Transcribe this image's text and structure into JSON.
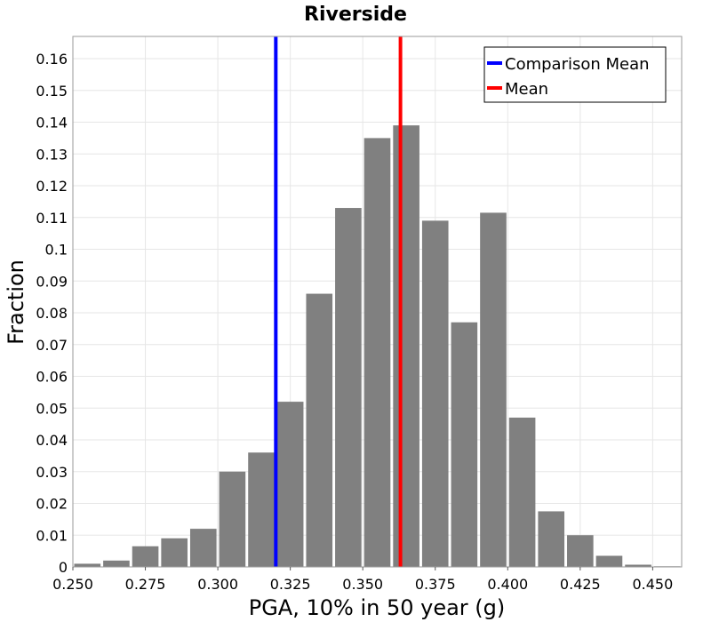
{
  "chart_data": {
    "type": "bar",
    "title": "Riverside",
    "xlabel": "PGA, 10% in 50 year (g)",
    "ylabel": "Fraction",
    "xlim": [
      0.25,
      0.46
    ],
    "ylim": [
      0,
      0.167
    ],
    "xticks": [
      "0.250",
      "0.275",
      "0.300",
      "0.325",
      "0.350",
      "0.375",
      "0.400",
      "0.425",
      "0.450"
    ],
    "yticks": [
      "0",
      "0.01",
      "0.02",
      "0.03",
      "0.04",
      "0.05",
      "0.06",
      "0.07",
      "0.08",
      "0.09",
      "0.1",
      "0.11",
      "0.12",
      "0.13",
      "0.14",
      "0.15",
      "0.16"
    ],
    "grid": true,
    "legend_position": "top-right",
    "bins": {
      "start": [
        0.25,
        0.26,
        0.27,
        0.28,
        0.29,
        0.3,
        0.31,
        0.32,
        0.33,
        0.34,
        0.35,
        0.36,
        0.37,
        0.38,
        0.39,
        0.4,
        0.41,
        0.42,
        0.43,
        0.44,
        0.45
      ],
      "end": [
        0.26,
        0.27,
        0.28,
        0.29,
        0.3,
        0.31,
        0.32,
        0.33,
        0.34,
        0.35,
        0.36,
        0.37,
        0.38,
        0.39,
        0.4,
        0.41,
        0.42,
        0.43,
        0.44,
        0.45,
        0.46
      ]
    },
    "values": [
      0.001,
      0.002,
      0.0065,
      0.009,
      0.012,
      0.03,
      0.036,
      0.052,
      0.086,
      0.113,
      0.135,
      0.139,
      0.109,
      0.077,
      0.1115,
      0.047,
      0.0175,
      0.01,
      0.0035,
      0.0007,
      0.0002
    ],
    "bar_color": "#808080",
    "lines": [
      {
        "name": "Comparison Mean",
        "x": 0.32,
        "color": "#0000ff"
      },
      {
        "name": "Mean",
        "x": 0.363,
        "color": "#ff0000"
      }
    ]
  }
}
